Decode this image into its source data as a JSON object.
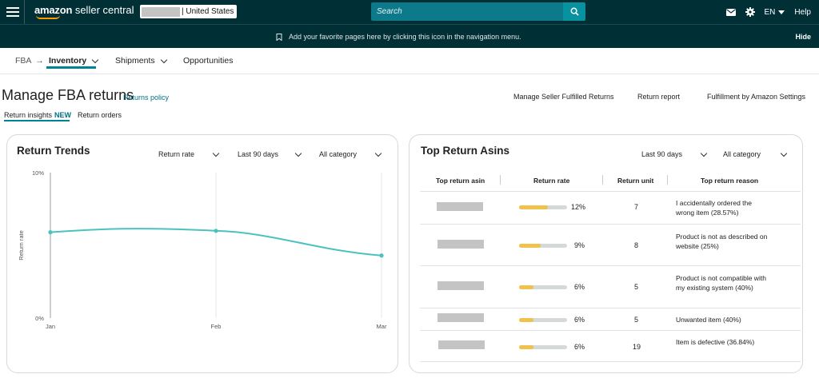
{
  "topbar": {
    "logo_brand": "amazon",
    "logo_product": "seller central",
    "store_region": "| United States",
    "search_placeholder": "Search",
    "language": "EN",
    "help_label": "Help",
    "icons": [
      "menu-icon",
      "mail-icon",
      "gear-icon",
      "search-icon",
      "caret-down-icon"
    ]
  },
  "bookmark_bar": {
    "message": "Add your favorite pages here by clicking this icon in the navigation menu.",
    "hide_label": "Hide"
  },
  "subnav": {
    "fba": "FBA",
    "inventory": "Inventory",
    "shipments": "Shipments",
    "opportunities": "Opportunities"
  },
  "page": {
    "title": "Manage FBA returns",
    "policy_link": "Returns policy",
    "links": [
      "Manage Seller Fulfilled Returns",
      "Return report",
      "Fulfillment by Amazon Settings"
    ],
    "tabs": {
      "insights": "Return insights",
      "insights_badge": "NEW",
      "orders": "Return orders"
    }
  },
  "trends": {
    "title": "Return Trends",
    "metric_select": "Return rate",
    "period_select": "Last 90 days",
    "category_select": "All category"
  },
  "chart_data": {
    "type": "line",
    "title": "Return Trends",
    "xlabel": "",
    "ylabel": "Return rate",
    "x": [
      "Jan",
      "Feb",
      "Mar"
    ],
    "series": [
      {
        "values": [
          5.9,
          6.0,
          4.3
        ],
        "smooth_peak": {
          "x": "between Jan and Feb",
          "value": 6.2
        }
      }
    ],
    "y_ticks": [
      "10%",
      "0%"
    ],
    "ylim": [
      0,
      10
    ],
    "color": "#4cc2be",
    "grid": "vertical"
  },
  "asins": {
    "title": "Top Return Asins",
    "period_select": "Last 90 days",
    "category_select": "All category",
    "headers": [
      "Top return asin",
      "Return rate",
      "Return unit",
      "Top return reason"
    ],
    "rows": [
      {
        "rate": "12%",
        "rate_value": 0.12,
        "units": "7",
        "reason": "I accidentally ordered the wrong item (28.57%)"
      },
      {
        "rate": "9%",
        "rate_value": 0.09,
        "units": "8",
        "reason": "Product is not as described on website (25%)"
      },
      {
        "rate": "6%",
        "rate_value": 0.06,
        "units": "5",
        "reason": "Product is not compatible with my existing system (40%)"
      },
      {
        "rate": "6%",
        "rate_value": 0.06,
        "units": "5",
        "reason": "Unwanted item (40%)"
      },
      {
        "rate": "6%",
        "rate_value": 0.06,
        "units": "19",
        "reason": "Item is defective (36.84%)"
      }
    ]
  },
  "colors": {
    "header_bg": "#002f36",
    "accent": "#008296",
    "link": "#007185",
    "bar_fill": "#f0c14b",
    "line": "#4cc2be"
  }
}
